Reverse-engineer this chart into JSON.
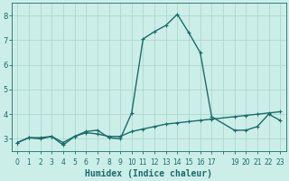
{
  "xlabel": "Humidex (Indice chaleur)",
  "bg_color": "#cceee8",
  "grid_color": "#aad8d0",
  "line_color": "#1a6b6b",
  "xlim_min": -0.5,
  "xlim_max": 23.5,
  "ylim_min": 2.5,
  "ylim_max": 8.5,
  "yticks": [
    3,
    4,
    5,
    6,
    7,
    8
  ],
  "xtick_labels": [
    "0",
    "1",
    "2",
    "3",
    "4",
    "5",
    "6",
    "7",
    "8",
    "9",
    "10",
    "11",
    "12",
    "13",
    "14",
    "15",
    "16",
    "17",
    "19",
    "20",
    "21",
    "22",
    "23"
  ],
  "trend_x": [
    0,
    1,
    2,
    3,
    4,
    5,
    6,
    7,
    8,
    9,
    10,
    11,
    12,
    13,
    14,
    15,
    16,
    17,
    19,
    20,
    21,
    22,
    23
  ],
  "trend_y": [
    2.85,
    3.05,
    3.05,
    3.1,
    2.85,
    3.1,
    3.25,
    3.2,
    3.1,
    3.1,
    3.3,
    3.4,
    3.5,
    3.6,
    3.65,
    3.7,
    3.75,
    3.8,
    3.9,
    3.95,
    4.0,
    4.05,
    4.1
  ],
  "humidex_x": [
    0,
    1,
    2,
    3,
    4,
    5,
    6,
    7,
    8,
    9,
    10,
    11,
    12,
    13,
    14,
    15,
    16,
    17,
    19,
    20,
    21,
    22,
    23
  ],
  "humidex_y": [
    2.85,
    3.05,
    3.0,
    3.1,
    2.75,
    3.1,
    3.3,
    3.35,
    3.05,
    3.0,
    4.05,
    7.05,
    7.35,
    7.6,
    8.05,
    7.3,
    6.5,
    3.9,
    3.35,
    3.35,
    3.5,
    4.0,
    3.75
  ],
  "linewidth": 1.0,
  "marker_size": 2.5,
  "xlabel_fontsize": 7,
  "tick_fontsize": 6
}
